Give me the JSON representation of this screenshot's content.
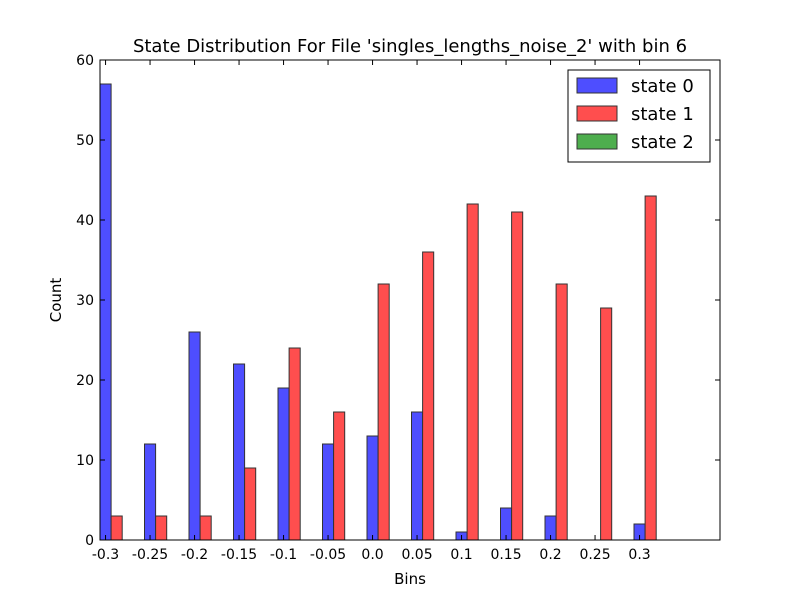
{
  "chart_data": {
    "type": "bar",
    "title": "State Distribution For File 'singles_lengths_noise_2' with bin 6",
    "xlabel": "Bins",
    "ylabel": "Count",
    "categories": [
      "-0.3",
      "-0.25",
      "-0.2",
      "-0.15",
      "-0.1",
      "-0.05",
      "0.0",
      "0.05",
      "0.1",
      "0.15",
      "0.2",
      "0.25",
      "0.3"
    ],
    "ylim": [
      0,
      60
    ],
    "yticks": [
      0,
      10,
      20,
      30,
      40,
      50,
      60
    ],
    "grid": false,
    "legend_position": "top-right",
    "series": [
      {
        "name": "state 0",
        "color": "#4444ff",
        "values": [
          57,
          12,
          26,
          22,
          19,
          12,
          13,
          16,
          1,
          4,
          3,
          0,
          2
        ]
      },
      {
        "name": "state 1",
        "color": "#ff4444",
        "values": [
          3,
          3,
          3,
          9,
          24,
          16,
          32,
          36,
          42,
          41,
          32,
          29,
          43
        ]
      },
      {
        "name": "state 2",
        "color": "#44aa44",
        "values": [
          0,
          0,
          0,
          0,
          0,
          0,
          0,
          0,
          0,
          0,
          0,
          0,
          0
        ]
      }
    ]
  }
}
